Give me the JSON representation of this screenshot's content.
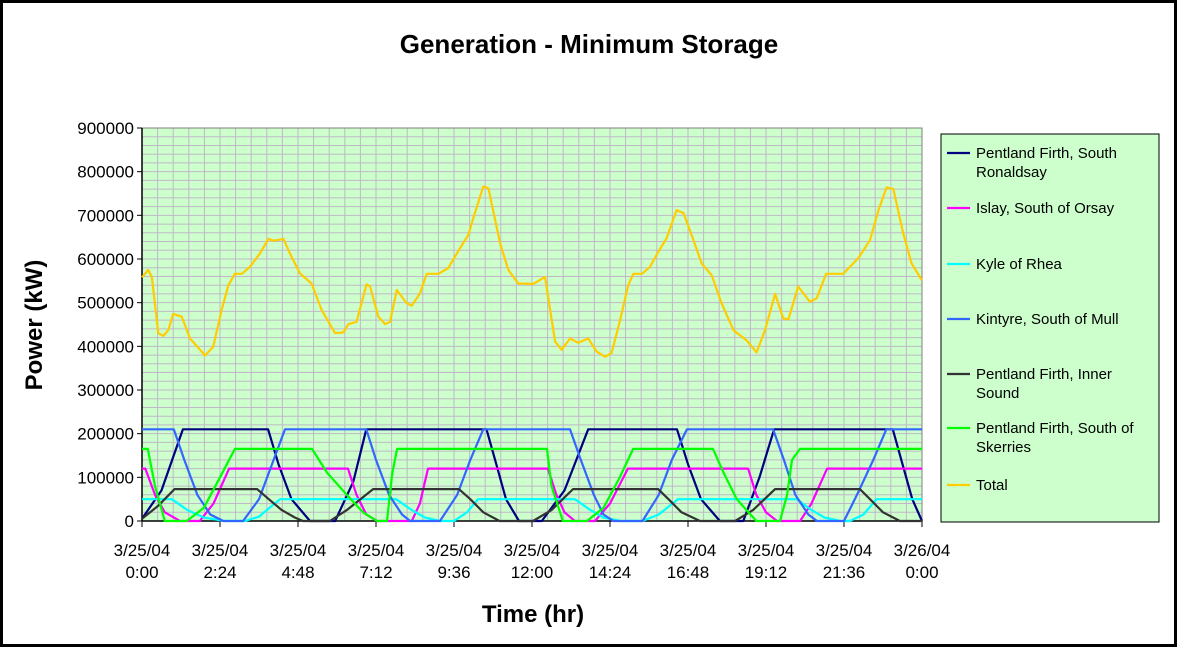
{
  "chart_data": {
    "type": "line",
    "title": "Generation - Minimum Storage",
    "xlabel": "Time (hr)",
    "ylabel": "Power (kW)",
    "x_unit": "hours from 3/25/04 0:00",
    "xlim": [
      0,
      24
    ],
    "ylim": [
      0,
      900000
    ],
    "y_major_step": 100000,
    "y_minor_step": 20000,
    "x_minor_step_hours": 0.48,
    "grid": true,
    "legend_position": "right",
    "plot_background": "#ccffcc",
    "grid_color": "#c0b8c8",
    "y_ticks": [
      "0",
      "100000",
      "200000",
      "300000",
      "400000",
      "500000",
      "600000",
      "700000",
      "800000",
      "900000"
    ],
    "x_ticks": [
      {
        "date": "3/25/04",
        "time": "0:00"
      },
      {
        "date": "3/25/04",
        "time": "2:24"
      },
      {
        "date": "3/25/04",
        "time": "4:48"
      },
      {
        "date": "3/25/04",
        "time": "7:12"
      },
      {
        "date": "3/25/04",
        "time": "9:36"
      },
      {
        "date": "3/25/04",
        "time": "12:00"
      },
      {
        "date": "3/25/04",
        "time": "14:24"
      },
      {
        "date": "3/25/04",
        "time": "16:48"
      },
      {
        "date": "3/25/04",
        "time": "19:12"
      },
      {
        "date": "3/25/04",
        "time": "21:36"
      },
      {
        "date": "3/26/04",
        "time": "0:00"
      }
    ],
    "series": [
      {
        "name": [
          "Pentland Firth, South",
          "Ronaldsay"
        ],
        "color": "#000080",
        "points": [
          [
            0,
            5000
          ],
          [
            0.6,
            70000
          ],
          [
            1.26,
            210000
          ],
          [
            3.88,
            210000
          ],
          [
            4.2,
            130000
          ],
          [
            4.6,
            50000
          ],
          [
            5.17,
            0
          ],
          [
            5.94,
            0
          ],
          [
            6.5,
            90000
          ],
          [
            6.9,
            210000
          ],
          [
            10.6,
            210000
          ],
          [
            10.9,
            130000
          ],
          [
            11.2,
            50000
          ],
          [
            11.6,
            0
          ],
          [
            12.3,
            0
          ],
          [
            13.0,
            70000
          ],
          [
            13.73,
            210000
          ],
          [
            16.46,
            210000
          ],
          [
            16.8,
            130000
          ],
          [
            17.2,
            50000
          ],
          [
            17.78,
            0
          ],
          [
            18.5,
            0
          ],
          [
            19.0,
            100000
          ],
          [
            19.45,
            210000
          ],
          [
            23.1,
            210000
          ],
          [
            23.4,
            130000
          ],
          [
            23.7,
            50000
          ],
          [
            24,
            0
          ]
        ]
      },
      {
        "name": [
          "Islay, South of Orsay"
        ],
        "color": "#ff00ff",
        "points": [
          [
            0,
            120000
          ],
          [
            0.1,
            120000
          ],
          [
            0.4,
            60000
          ],
          [
            0.7,
            20000
          ],
          [
            1.17,
            0
          ],
          [
            1.78,
            0
          ],
          [
            2.2,
            40000
          ],
          [
            2.68,
            120000
          ],
          [
            6.34,
            120000
          ],
          [
            6.6,
            60000
          ],
          [
            6.9,
            15000
          ],
          [
            7.23,
            0
          ],
          [
            8.3,
            0
          ],
          [
            8.55,
            40000
          ],
          [
            8.8,
            120000
          ],
          [
            12.49,
            120000
          ],
          [
            12.75,
            60000
          ],
          [
            13.0,
            20000
          ],
          [
            13.32,
            0
          ],
          [
            13.94,
            0
          ],
          [
            14.4,
            40000
          ],
          [
            14.95,
            120000
          ],
          [
            18.65,
            120000
          ],
          [
            18.9,
            60000
          ],
          [
            19.2,
            20000
          ],
          [
            19.54,
            0
          ],
          [
            20.25,
            0
          ],
          [
            20.6,
            40000
          ],
          [
            21.08,
            120000
          ],
          [
            24,
            120000
          ]
        ]
      },
      {
        "name": [
          "Kyle of Rhea"
        ],
        "color": "#00ffff",
        "points": [
          [
            0,
            50000
          ],
          [
            0.92,
            50000
          ],
          [
            1.4,
            25000
          ],
          [
            1.9,
            8000
          ],
          [
            2.55,
            0
          ],
          [
            3.17,
            0
          ],
          [
            3.6,
            10000
          ],
          [
            4.0,
            35000
          ],
          [
            4.25,
            50000
          ],
          [
            7.82,
            50000
          ],
          [
            8.3,
            25000
          ],
          [
            8.7,
            8000
          ],
          [
            9.17,
            0
          ],
          [
            9.6,
            0
          ],
          [
            10.0,
            20000
          ],
          [
            10.34,
            50000
          ],
          [
            13.32,
            50000
          ],
          [
            13.8,
            25000
          ],
          [
            14.2,
            8000
          ],
          [
            14.71,
            0
          ],
          [
            15.4,
            0
          ],
          [
            15.9,
            15000
          ],
          [
            16.49,
            50000
          ],
          [
            20.15,
            50000
          ],
          [
            20.6,
            25000
          ],
          [
            21.0,
            8000
          ],
          [
            21.48,
            0
          ],
          [
            21.78,
            0
          ],
          [
            22.2,
            15000
          ],
          [
            22.6,
            50000
          ],
          [
            24,
            50000
          ]
        ]
      },
      {
        "name": [
          "Kintyre, South of Mull"
        ],
        "color": "#3366ff",
        "points": [
          [
            0,
            210000
          ],
          [
            0.98,
            210000
          ],
          [
            1.3,
            140000
          ],
          [
            1.7,
            60000
          ],
          [
            2.1,
            15000
          ],
          [
            2.5,
            0
          ],
          [
            3.11,
            0
          ],
          [
            3.6,
            50000
          ],
          [
            4.0,
            130000
          ],
          [
            4.4,
            210000
          ],
          [
            6.9,
            210000
          ],
          [
            7.2,
            140000
          ],
          [
            7.6,
            60000
          ],
          [
            8.0,
            15000
          ],
          [
            8.25,
            0
          ],
          [
            9.17,
            0
          ],
          [
            9.7,
            60000
          ],
          [
            10.1,
            140000
          ],
          [
            10.5,
            210000
          ],
          [
            13.17,
            210000
          ],
          [
            13.5,
            140000
          ],
          [
            13.9,
            60000
          ],
          [
            14.2,
            15000
          ],
          [
            14.5,
            0
          ],
          [
            15.4,
            0
          ],
          [
            15.9,
            60000
          ],
          [
            16.3,
            140000
          ],
          [
            16.77,
            210000
          ],
          [
            19.42,
            210000
          ],
          [
            19.75,
            140000
          ],
          [
            20.1,
            60000
          ],
          [
            20.5,
            15000
          ],
          [
            20.77,
            0
          ],
          [
            21.6,
            0
          ],
          [
            22.0,
            60000
          ],
          [
            22.5,
            140000
          ],
          [
            22.9,
            210000
          ],
          [
            24,
            210000
          ]
        ]
      },
      {
        "name": [
          "Pentland Firth, Inner",
          "Sound"
        ],
        "color": "#333333",
        "points": [
          [
            0,
            5000
          ],
          [
            0.5,
            35000
          ],
          [
            1.0,
            73000
          ],
          [
            3.54,
            73000
          ],
          [
            3.9,
            50000
          ],
          [
            4.3,
            25000
          ],
          [
            4.7,
            8000
          ],
          [
            4.95,
            0
          ],
          [
            5.78,
            0
          ],
          [
            6.3,
            25000
          ],
          [
            7.11,
            73000
          ],
          [
            9.75,
            73000
          ],
          [
            10.1,
            50000
          ],
          [
            10.5,
            20000
          ],
          [
            11.0,
            0
          ],
          [
            12.03,
            0
          ],
          [
            12.6,
            25000
          ],
          [
            13.26,
            73000
          ],
          [
            15.88,
            73000
          ],
          [
            16.2,
            50000
          ],
          [
            16.6,
            20000
          ],
          [
            17.17,
            0
          ],
          [
            18.25,
            0
          ],
          [
            18.8,
            25000
          ],
          [
            19.48,
            73000
          ],
          [
            22.09,
            73000
          ],
          [
            22.4,
            50000
          ],
          [
            22.8,
            20000
          ],
          [
            23.32,
            0
          ],
          [
            24,
            0
          ]
        ]
      },
      {
        "name": [
          "Pentland Firth, South of",
          "Skerries"
        ],
        "color": "#00ff00",
        "points": [
          [
            0,
            165000
          ],
          [
            0.18,
            165000
          ],
          [
            0.4,
            80000
          ],
          [
            0.7,
            0
          ],
          [
            1.38,
            0
          ],
          [
            1.9,
            30000
          ],
          [
            2.4,
            100000
          ],
          [
            2.86,
            165000
          ],
          [
            5.23,
            165000
          ],
          [
            5.7,
            110000
          ],
          [
            6.3,
            60000
          ],
          [
            6.8,
            20000
          ],
          [
            7.23,
            0
          ],
          [
            7.54,
            0
          ],
          [
            7.7,
            110000
          ],
          [
            7.85,
            165000
          ],
          [
            12.46,
            165000
          ],
          [
            12.6,
            80000
          ],
          [
            12.95,
            0
          ],
          [
            13.69,
            0
          ],
          [
            14.2,
            30000
          ],
          [
            14.7,
            100000
          ],
          [
            15.11,
            165000
          ],
          [
            17.57,
            165000
          ],
          [
            17.9,
            110000
          ],
          [
            18.3,
            50000
          ],
          [
            18.9,
            0
          ],
          [
            19.63,
            0
          ],
          [
            19.85,
            60000
          ],
          [
            20.0,
            140000
          ],
          [
            20.25,
            165000
          ],
          [
            24,
            165000
          ]
        ]
      },
      {
        "name": [
          "Total"
        ],
        "color": "#ffcc00",
        "points": [
          [
            0,
            558000
          ],
          [
            0.19,
            575000
          ],
          [
            0.3,
            559000
          ],
          [
            0.5,
            430000
          ],
          [
            0.66,
            424000
          ],
          [
            0.81,
            437000
          ],
          [
            0.96,
            474000
          ],
          [
            1.22,
            468000
          ],
          [
            1.48,
            418000
          ],
          [
            1.94,
            379000
          ],
          [
            2.19,
            399000
          ],
          [
            2.45,
            483000
          ],
          [
            2.66,
            540000
          ],
          [
            2.86,
            566000
          ],
          [
            3.07,
            566000
          ],
          [
            3.32,
            582000
          ],
          [
            3.63,
            613000
          ],
          [
            3.89,
            646000
          ],
          [
            4.04,
            642000
          ],
          [
            4.35,
            646000
          ],
          [
            4.6,
            605000
          ],
          [
            4.86,
            567000
          ],
          [
            5.22,
            544000
          ],
          [
            5.53,
            483000
          ],
          [
            5.94,
            430000
          ],
          [
            6.2,
            432000
          ],
          [
            6.35,
            451000
          ],
          [
            6.6,
            456000
          ],
          [
            6.91,
            542000
          ],
          [
            7.02,
            537000
          ],
          [
            7.27,
            468000
          ],
          [
            7.48,
            451000
          ],
          [
            7.63,
            456000
          ],
          [
            7.84,
            529000
          ],
          [
            8.14,
            499000
          ],
          [
            8.3,
            493000
          ],
          [
            8.55,
            521000
          ],
          [
            8.76,
            566000
          ],
          [
            9.12,
            566000
          ],
          [
            9.42,
            579000
          ],
          [
            9.78,
            624000
          ],
          [
            10.04,
            655000
          ],
          [
            10.19,
            693000
          ],
          [
            10.5,
            766000
          ],
          [
            10.66,
            762000
          ],
          [
            11.02,
            636000
          ],
          [
            11.27,
            575000
          ],
          [
            11.58,
            544000
          ],
          [
            12.04,
            543000
          ],
          [
            12.4,
            559000
          ],
          [
            12.71,
            411000
          ],
          [
            12.91,
            392000
          ],
          [
            13.17,
            418000
          ],
          [
            13.42,
            408000
          ],
          [
            13.73,
            418000
          ],
          [
            13.99,
            388000
          ],
          [
            14.25,
            376000
          ],
          [
            14.45,
            385000
          ],
          [
            14.71,
            460000
          ],
          [
            14.96,
            540000
          ],
          [
            15.12,
            566000
          ],
          [
            15.38,
            566000
          ],
          [
            15.63,
            582000
          ],
          [
            15.89,
            617000
          ],
          [
            16.14,
            647000
          ],
          [
            16.45,
            712000
          ],
          [
            16.66,
            705000
          ],
          [
            16.97,
            643000
          ],
          [
            17.22,
            590000
          ],
          [
            17.53,
            563000
          ],
          [
            17.83,
            499000
          ],
          [
            18.2,
            437000
          ],
          [
            18.6,
            414000
          ],
          [
            18.91,
            386000
          ],
          [
            19.17,
            437000
          ],
          [
            19.48,
            520000
          ],
          [
            19.73,
            464000
          ],
          [
            19.89,
            462000
          ],
          [
            20.19,
            537000
          ],
          [
            20.55,
            502000
          ],
          [
            20.76,
            510000
          ],
          [
            21.05,
            566000
          ],
          [
            21.58,
            566000
          ],
          [
            22.04,
            602000
          ],
          [
            22.4,
            643000
          ],
          [
            22.66,
            712000
          ],
          [
            22.91,
            764000
          ],
          [
            23.12,
            760000
          ],
          [
            23.42,
            659000
          ],
          [
            23.68,
            590000
          ],
          [
            23.99,
            552000
          ]
        ]
      }
    ]
  }
}
